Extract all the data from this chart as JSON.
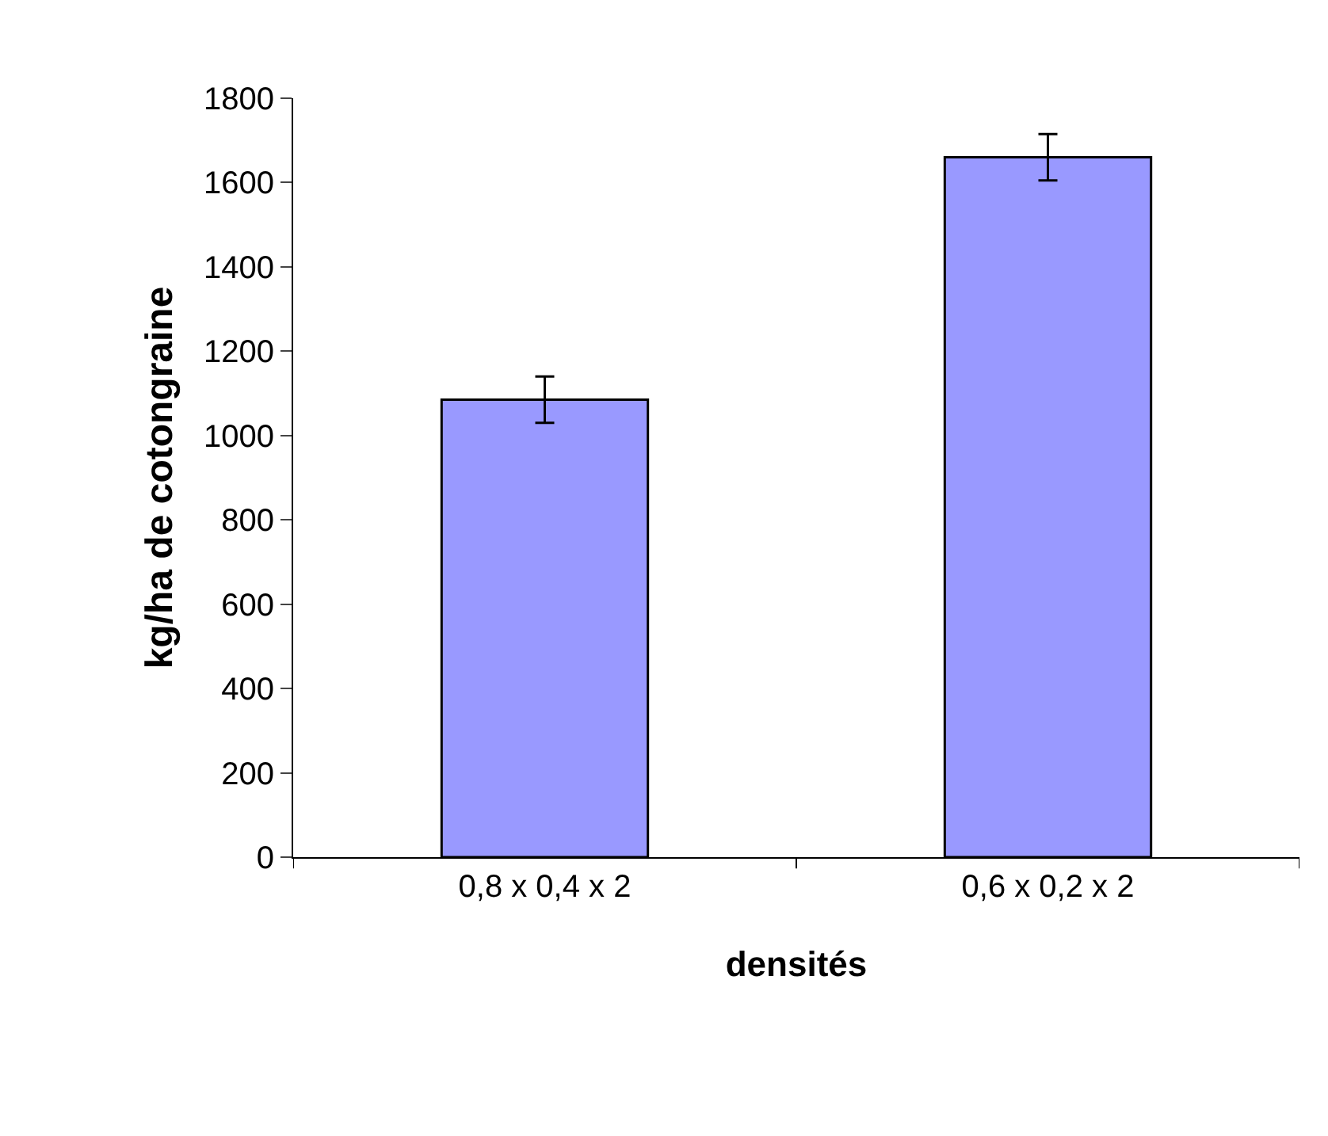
{
  "chart_data": {
    "type": "bar",
    "xlabel": "densités",
    "ylabel": "kg/ha de cotongraine",
    "categories": [
      "0,8 x 0,4 x 2",
      "0,6 x 0,2 x 2"
    ],
    "values": [
      1085,
      1660
    ],
    "errors": [
      55,
      55
    ],
    "color": "#9999ff",
    "ylim": [
      0,
      1800
    ],
    "yticks": [
      0,
      200,
      400,
      600,
      800,
      1000,
      1200,
      1400,
      1600,
      1800
    ],
    "legend": false
  }
}
